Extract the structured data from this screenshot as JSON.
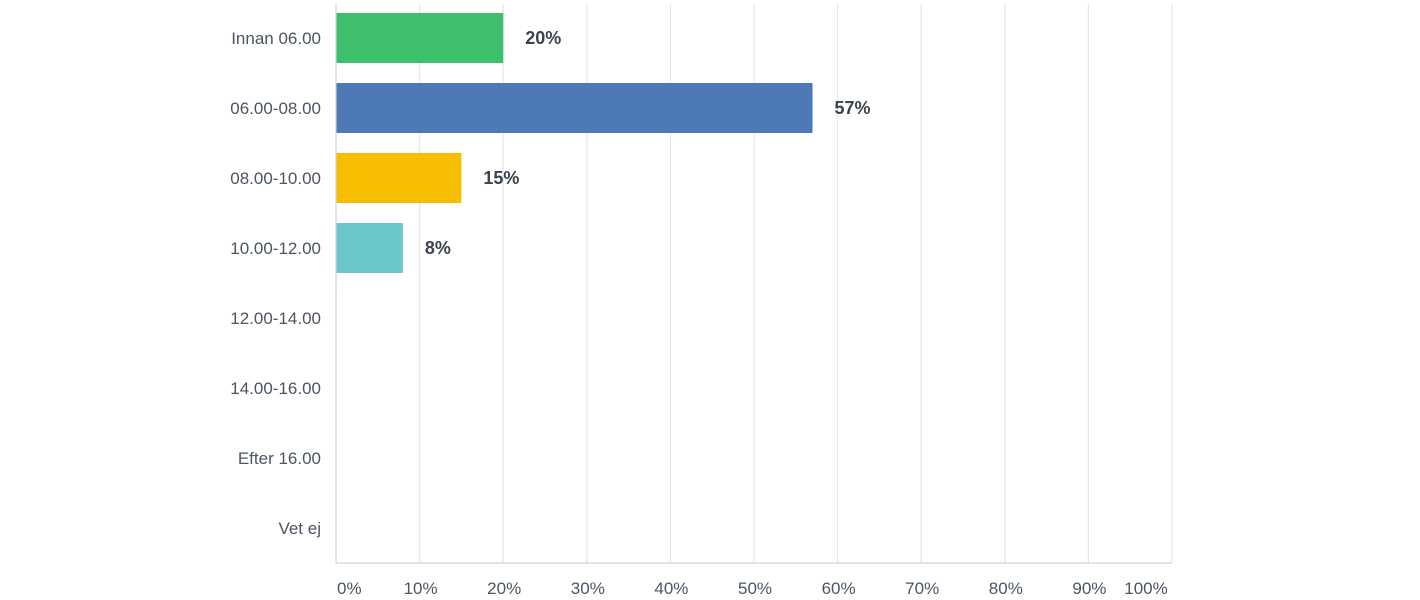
{
  "chart_data": {
    "type": "bar",
    "orientation": "horizontal",
    "categories": [
      "Innan 06.00",
      "06.00-08.00",
      "08.00-10.00",
      "10.00-12.00",
      "12.00-14.00",
      "14.00-16.00",
      "Efter 16.00",
      "Vet ej"
    ],
    "values": [
      20,
      57,
      15,
      8,
      0,
      0,
      0,
      0
    ],
    "data_labels": [
      "20%",
      "57%",
      "15%",
      "8%",
      "",
      "",
      "",
      ""
    ],
    "colors": [
      "#3dbf6b",
      "#4d79b6",
      "#f7be00",
      "#6cc7cc",
      "#3dbf6b",
      "#3dbf6b",
      "#3dbf6b",
      "#3dbf6b"
    ],
    "x_ticks": [
      "0%",
      "10%",
      "20%",
      "30%",
      "40%",
      "50%",
      "60%",
      "70%",
      "80%",
      "90%",
      "100%"
    ],
    "xlim": [
      0,
      100
    ],
    "grid": true,
    "legend": "none",
    "title": "",
    "xlabel": "",
    "ylabel": ""
  }
}
